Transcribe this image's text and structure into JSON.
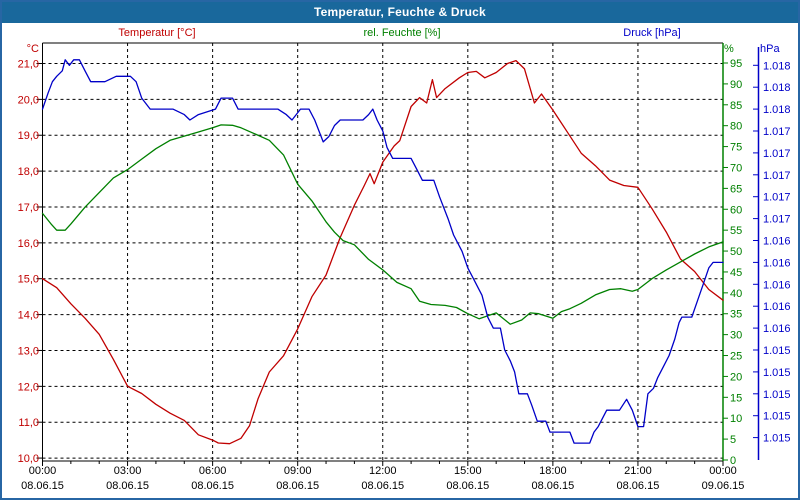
{
  "window": {
    "title": "Temperatur, Feuchte & Druck"
  },
  "series_labels": {
    "temperature": "Temperatur [°C]",
    "humidity": "rel. Feuchte [%]",
    "pressure": "Druck [hPa]"
  },
  "colors": {
    "titlebar_bg": "#19689c",
    "window_border": "#2766a4",
    "temperature": "#c00000",
    "humidity": "#008000",
    "pressure": "#0000c8",
    "grid": "#000000",
    "x_labels": "#000000"
  },
  "chart_data": {
    "type": "line",
    "grid": true,
    "legend_position": "top",
    "x_axis": {
      "range_hours": [
        0,
        24
      ],
      "minor_tick_every_hours": 1,
      "major_ticks": [
        {
          "hours": 0,
          "time": "00:00",
          "date": "08.06.15"
        },
        {
          "hours": 3,
          "time": "03:00",
          "date": "08.06.15"
        },
        {
          "hours": 6,
          "time": "06:00",
          "date": "08.06.15"
        },
        {
          "hours": 9,
          "time": "09:00",
          "date": "08.06.15"
        },
        {
          "hours": 12,
          "time": "12:00",
          "date": "08.06.15"
        },
        {
          "hours": 15,
          "time": "15:00",
          "date": "08.06.15"
        },
        {
          "hours": 18,
          "time": "18:00",
          "date": "08.06.15"
        },
        {
          "hours": 21,
          "time": "21:00",
          "date": "08.06.15"
        },
        {
          "hours": 24,
          "time": "00:00",
          "date": "09.06.15"
        }
      ]
    },
    "left_axis_temperature": {
      "unit": "°C",
      "min": 10,
      "max": 21.35,
      "gridline_values": [
        21,
        20,
        19,
        18,
        17,
        16,
        15,
        14,
        13,
        12,
        11,
        10
      ],
      "tick_labels": [
        "21,0",
        "20,0",
        "19,0",
        "18,0",
        "17,0",
        "16,0",
        "15,0",
        "14,0",
        "13,0",
        "12,0",
        "11,0",
        "10,0"
      ]
    },
    "right_axis_humidity": {
      "unit": "%",
      "min": 0,
      "max": 95,
      "tick_values": [
        95,
        90,
        85,
        80,
        75,
        70,
        65,
        60,
        55,
        50,
        45,
        40,
        35,
        30,
        25,
        20,
        15,
        10,
        5,
        0
      ]
    },
    "right_axis_pressure": {
      "unit": "hPa",
      "min_hpa": 1015.0,
      "max_hpa": 1018.4,
      "tick_step_hpa": 0.2,
      "ticks": [
        {
          "value": 1018.4,
          "label": "1.018"
        },
        {
          "value": 1018.2,
          "label": "1.018"
        },
        {
          "value": 1018.0,
          "label": "1.018"
        },
        {
          "value": 1017.8,
          "label": "1.017"
        },
        {
          "value": 1017.6,
          "label": "1.017"
        },
        {
          "value": 1017.4,
          "label": "1.017"
        },
        {
          "value": 1017.2,
          "label": "1.017"
        },
        {
          "value": 1017.0,
          "label": "1.017"
        },
        {
          "value": 1016.8,
          "label": "1.016"
        },
        {
          "value": 1016.6,
          "label": "1.016"
        },
        {
          "value": 1016.4,
          "label": "1.016"
        },
        {
          "value": 1016.2,
          "label": "1.016"
        },
        {
          "value": 1016.0,
          "label": "1.016"
        },
        {
          "value": 1015.8,
          "label": "1.015"
        },
        {
          "value": 1015.6,
          "label": "1.015"
        },
        {
          "value": 1015.4,
          "label": "1.015"
        },
        {
          "value": 1015.2,
          "label": "1.015"
        },
        {
          "value": 1015.0,
          "label": "1.015"
        }
      ]
    },
    "series": [
      {
        "name": "Temperatur",
        "unit": "°C",
        "axis": "temperature",
        "color": "#c00000",
        "points": [
          [
            0,
            15.0
          ],
          [
            0.5,
            14.75
          ],
          [
            1,
            14.3
          ],
          [
            1.5,
            13.9
          ],
          [
            2,
            13.45
          ],
          [
            2.5,
            12.75
          ],
          [
            3,
            12.0
          ],
          [
            3.5,
            11.8
          ],
          [
            4,
            11.5
          ],
          [
            4.5,
            11.25
          ],
          [
            5,
            11.05
          ],
          [
            5.5,
            10.65
          ],
          [
            6,
            10.5
          ],
          [
            6.2,
            10.42
          ],
          [
            6.6,
            10.4
          ],
          [
            7,
            10.55
          ],
          [
            7.3,
            10.9
          ],
          [
            7.6,
            11.65
          ],
          [
            8,
            12.4
          ],
          [
            8.5,
            12.85
          ],
          [
            9,
            13.6
          ],
          [
            9.5,
            14.5
          ],
          [
            10,
            15.1
          ],
          [
            10.5,
            16.15
          ],
          [
            11,
            17.05
          ],
          [
            11.35,
            17.6
          ],
          [
            11.55,
            17.93
          ],
          [
            11.7,
            17.65
          ],
          [
            12,
            18.25
          ],
          [
            12.4,
            18.7
          ],
          [
            12.6,
            18.85
          ],
          [
            13,
            19.8
          ],
          [
            13.3,
            20.05
          ],
          [
            13.55,
            19.9
          ],
          [
            13.75,
            20.55
          ],
          [
            13.9,
            20.05
          ],
          [
            14.2,
            20.3
          ],
          [
            14.7,
            20.6
          ],
          [
            15,
            20.75
          ],
          [
            15.3,
            20.78
          ],
          [
            15.6,
            20.6
          ],
          [
            16,
            20.75
          ],
          [
            16.4,
            21.0
          ],
          [
            16.7,
            21.08
          ],
          [
            17,
            20.85
          ],
          [
            17.35,
            19.9
          ],
          [
            17.6,
            20.15
          ],
          [
            18,
            19.7
          ],
          [
            18.5,
            19.1
          ],
          [
            19,
            18.5
          ],
          [
            19.5,
            18.15
          ],
          [
            20,
            17.75
          ],
          [
            20.5,
            17.6
          ],
          [
            21,
            17.55
          ],
          [
            21.5,
            16.95
          ],
          [
            22,
            16.3
          ],
          [
            22.5,
            15.55
          ],
          [
            23,
            15.2
          ],
          [
            23.5,
            14.7
          ],
          [
            24,
            14.4
          ]
        ]
      },
      {
        "name": "rel. Feuchte",
        "unit": "%",
        "axis": "humidity",
        "color": "#008000",
        "points": [
          [
            0,
            59
          ],
          [
            0.3,
            56.5
          ],
          [
            0.5,
            55
          ],
          [
            0.8,
            55
          ],
          [
            1,
            56.5
          ],
          [
            1.5,
            60.5
          ],
          [
            2,
            64
          ],
          [
            2.5,
            67.5
          ],
          [
            3,
            69.5
          ],
          [
            3.5,
            72
          ],
          [
            4,
            74.5
          ],
          [
            4.5,
            76.5
          ],
          [
            5,
            77.5
          ],
          [
            5.5,
            78.5
          ],
          [
            6,
            79.5
          ],
          [
            6.3,
            80.2
          ],
          [
            6.7,
            80.1
          ],
          [
            7,
            79.5
          ],
          [
            7.5,
            78
          ],
          [
            8,
            76.5
          ],
          [
            8.5,
            73
          ],
          [
            9,
            66
          ],
          [
            9.5,
            62
          ],
          [
            10,
            57
          ],
          [
            10.3,
            54.5
          ],
          [
            10.6,
            52.5
          ],
          [
            11,
            51.5
          ],
          [
            11.5,
            48
          ],
          [
            12,
            45.5
          ],
          [
            12.5,
            42.5
          ],
          [
            13,
            41
          ],
          [
            13.3,
            38
          ],
          [
            13.7,
            37.2
          ],
          [
            14.2,
            37
          ],
          [
            14.6,
            36.5
          ],
          [
            15,
            35
          ],
          [
            15.4,
            33.8
          ],
          [
            16,
            35.2
          ],
          [
            16.5,
            32.5
          ],
          [
            16.9,
            33.5
          ],
          [
            17.2,
            35.2
          ],
          [
            17.5,
            35
          ],
          [
            18,
            33.9
          ],
          [
            18.3,
            35.5
          ],
          [
            18.6,
            36.2
          ],
          [
            19,
            37.5
          ],
          [
            19.5,
            39.5
          ],
          [
            20,
            40.8
          ],
          [
            20.4,
            41
          ],
          [
            20.8,
            40.4
          ],
          [
            21,
            40.8
          ],
          [
            21.5,
            43.4
          ],
          [
            22,
            45.5
          ],
          [
            22.5,
            47.4
          ],
          [
            23,
            49.3
          ],
          [
            23.5,
            51
          ],
          [
            24,
            52.2
          ]
        ]
      },
      {
        "name": "Druck",
        "unit": "hPa",
        "axis": "pressure",
        "color": "#0000c8",
        "points": [
          [
            0,
            1018.0
          ],
          [
            0.2,
            1018.15
          ],
          [
            0.35,
            1018.25
          ],
          [
            0.5,
            1018.3
          ],
          [
            0.7,
            1018.35
          ],
          [
            0.8,
            1018.45
          ],
          [
            0.95,
            1018.4
          ],
          [
            1.1,
            1018.45
          ],
          [
            1.3,
            1018.45
          ],
          [
            1.5,
            1018.35
          ],
          [
            1.7,
            1018.25
          ],
          [
            2.2,
            1018.25
          ],
          [
            2.6,
            1018.3
          ],
          [
            3.1,
            1018.3
          ],
          [
            3.3,
            1018.25
          ],
          [
            3.5,
            1018.1
          ],
          [
            3.8,
            1018.0
          ],
          [
            4.6,
            1018.0
          ],
          [
            5,
            1017.95
          ],
          [
            5.2,
            1017.9
          ],
          [
            5.5,
            1017.95
          ],
          [
            6.1,
            1018.0
          ],
          [
            6.3,
            1018.1
          ],
          [
            6.7,
            1018.1
          ],
          [
            6.9,
            1018.0
          ],
          [
            7.5,
            1018.0
          ],
          [
            8.3,
            1018.0
          ],
          [
            8.6,
            1017.95
          ],
          [
            8.8,
            1017.9
          ],
          [
            9.1,
            1018.0
          ],
          [
            9.4,
            1018.0
          ],
          [
            9.6,
            1017.9
          ],
          [
            9.9,
            1017.7
          ],
          [
            10.1,
            1017.75
          ],
          [
            10.3,
            1017.85
          ],
          [
            10.5,
            1017.9
          ],
          [
            11.3,
            1017.9
          ],
          [
            11.5,
            1017.95
          ],
          [
            11.65,
            1018.0
          ],
          [
            11.8,
            1017.9
          ],
          [
            12,
            1017.8
          ],
          [
            12.15,
            1017.65
          ],
          [
            12.35,
            1017.55
          ],
          [
            13,
            1017.55
          ],
          [
            13.2,
            1017.45
          ],
          [
            13.4,
            1017.35
          ],
          [
            13.8,
            1017.35
          ],
          [
            14,
            1017.2
          ],
          [
            14.3,
            1017.0
          ],
          [
            14.5,
            1016.85
          ],
          [
            14.8,
            1016.7
          ],
          [
            15,
            1016.55
          ],
          [
            15.2,
            1016.45
          ],
          [
            15.5,
            1016.3
          ],
          [
            15.7,
            1016.1
          ],
          [
            15.9,
            1016.0
          ],
          [
            16.15,
            1016.0
          ],
          [
            16.3,
            1015.8
          ],
          [
            16.5,
            1015.7
          ],
          [
            16.65,
            1015.6
          ],
          [
            16.8,
            1015.4
          ],
          [
            17.1,
            1015.4
          ],
          [
            17.25,
            1015.3
          ],
          [
            17.45,
            1015.15
          ],
          [
            17.75,
            1015.15
          ],
          [
            17.9,
            1015.05
          ],
          [
            18.6,
            1015.05
          ],
          [
            18.75,
            1014.95
          ],
          [
            19.3,
            1014.95
          ],
          [
            19.45,
            1015.05
          ],
          [
            19.6,
            1015.1
          ],
          [
            19.9,
            1015.25
          ],
          [
            20.35,
            1015.25
          ],
          [
            20.6,
            1015.35
          ],
          [
            20.8,
            1015.25
          ],
          [
            21,
            1015.1
          ],
          [
            21.2,
            1015.1
          ],
          [
            21.35,
            1015.4
          ],
          [
            21.55,
            1015.45
          ],
          [
            21.7,
            1015.55
          ],
          [
            21.9,
            1015.65
          ],
          [
            22.1,
            1015.75
          ],
          [
            22.3,
            1015.9
          ],
          [
            22.45,
            1016.05
          ],
          [
            22.55,
            1016.1
          ],
          [
            22.9,
            1016.1
          ],
          [
            23.1,
            1016.25
          ],
          [
            23.3,
            1016.4
          ],
          [
            23.5,
            1016.55
          ],
          [
            23.65,
            1016.6
          ],
          [
            24,
            1016.6
          ]
        ]
      }
    ]
  }
}
